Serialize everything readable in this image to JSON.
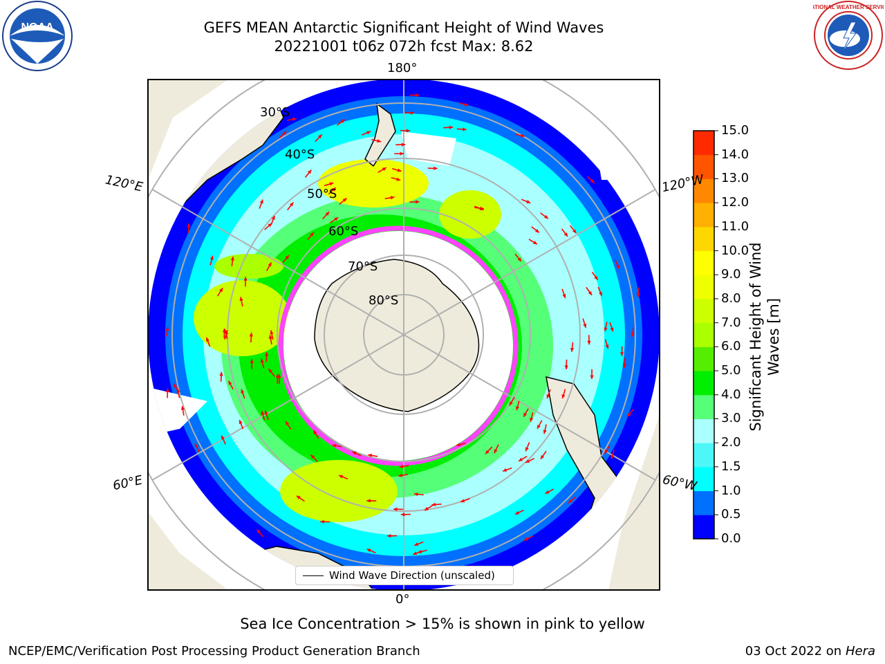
{
  "header": {
    "title_line1": "GEFS MEAN Antarctic Significant Height of Wind Waves",
    "title_line2": "20221001 t06z 072h fcst   Max: 8.62"
  },
  "logos": {
    "left": {
      "icon": "noaa-logo-icon",
      "text": "NOAA"
    },
    "right": {
      "icon": "nws-logo-icon",
      "text": "NATIONAL WEATHER SERVICE"
    }
  },
  "map": {
    "longitude_labels": [
      "180°",
      "120°E",
      "120°W",
      "60°E",
      "60°W",
      "0°"
    ],
    "latitude_labels": [
      "30°S",
      "40°S",
      "50°S",
      "60°S",
      "70°S",
      "80°S"
    ],
    "legend": "Wind Wave Direction (unscaled)"
  },
  "colorbar": {
    "label": "Significant Height of Wind Waves [m]",
    "ticks": [
      "0.0",
      "0.5",
      "1.0",
      "1.5",
      "2.0",
      "3.0",
      "4.0",
      "5.0",
      "6.0",
      "7.0",
      "8.0",
      "9.0",
      "10.0",
      "11.0",
      "12.0",
      "13.0",
      "14.0",
      "15.0"
    ],
    "colors": [
      "#0000ff",
      "#0070ff",
      "#00ffff",
      "#4df7f7",
      "#aaffff",
      "#55ff77",
      "#00ee00",
      "#55ee00",
      "#aaff00",
      "#ccff00",
      "#eeff00",
      "#ffff00",
      "#ffd700",
      "#ffb000",
      "#ff8800",
      "#ff5500",
      "#ff2a00"
    ]
  },
  "caption": "Sea Ice Concentration > 15% is shown in pink to yellow",
  "footer": {
    "left": "NCEP/EMC/Verification Post Processing Product Generation Branch",
    "right_date": "03 Oct 2022 on ",
    "right_host": "Hera"
  }
}
